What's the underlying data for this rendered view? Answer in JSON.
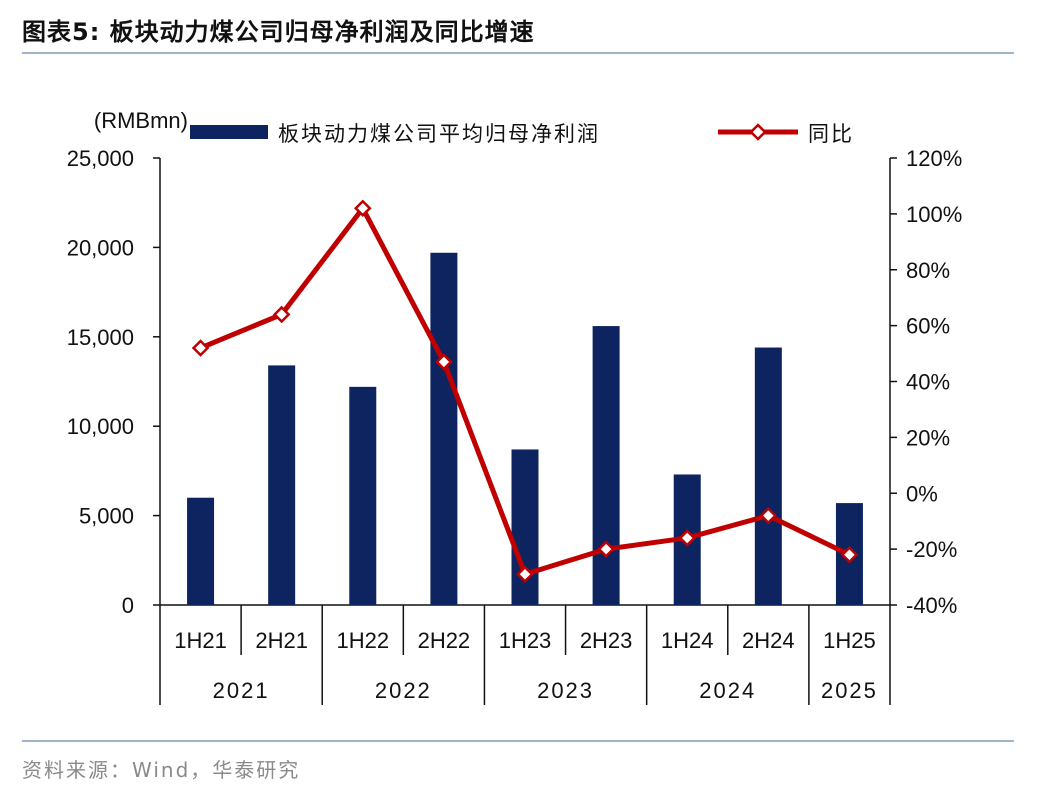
{
  "header": {
    "title": "图表5:   板块动力煤公司归母净利润及同比增速"
  },
  "footer": {
    "source": "资料来源：Wind，华泰研究"
  },
  "chart_data": {
    "type": "bar",
    "ylabel_left": "(RMBmn)",
    "categories": [
      "1H21",
      "2H21",
      "1H22",
      "2H22",
      "1H23",
      "2H23",
      "1H24",
      "2H24",
      "1H25"
    ],
    "year_groups": [
      {
        "label": "2021",
        "count": 2
      },
      {
        "label": "2022",
        "count": 2
      },
      {
        "label": "2023",
        "count": 2
      },
      {
        "label": "2024",
        "count": 2
      },
      {
        "label": "2025",
        "count": 1
      }
    ],
    "series": [
      {
        "name": "板块动力煤公司平均归母净利润",
        "type": "bar",
        "axis": "left",
        "color": "#0e2460",
        "values": [
          6000,
          13400,
          12200,
          19700,
          8700,
          15600,
          7300,
          14400,
          5700
        ]
      },
      {
        "name": "同比",
        "type": "line",
        "axis": "right",
        "color": "#c00000",
        "values": [
          52,
          64,
          102,
          47,
          -29,
          -20,
          -16,
          -8,
          -22
        ]
      }
    ],
    "ylim_left": [
      0,
      25000
    ],
    "yticks_left": [
      "0",
      "5,000",
      "10,000",
      "15,000",
      "20,000",
      "25,000"
    ],
    "ylim_right": [
      -40,
      120
    ],
    "yticks_right": [
      "-40%",
      "-20%",
      "0%",
      "20%",
      "40%",
      "60%",
      "80%",
      "100%",
      "120%"
    ],
    "legend_position": "top"
  }
}
